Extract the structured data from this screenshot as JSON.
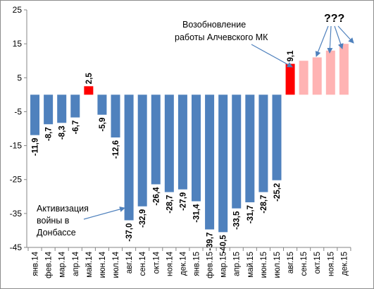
{
  "chart_data": {
    "type": "bar",
    "categories": [
      "янв.14",
      "фев.14",
      "мар.14",
      "апр.14",
      "май.14",
      "июн.14",
      "июл.14",
      "авг.14",
      "сен.14",
      "окт.14",
      "ноя.14",
      "дек.14",
      "янв.15",
      "фев.15",
      "мар.15",
      "апр.15",
      "май.15",
      "июн.15",
      "июл.15",
      "авг.15",
      "сен.15",
      "окт.15",
      "ноя.15",
      "дек.15"
    ],
    "values": [
      -11.9,
      -8.7,
      -8.3,
      -6.7,
      2.5,
      -5.9,
      -12.6,
      -37.0,
      -32.9,
      -26.4,
      -28.7,
      -27.9,
      -31.4,
      -39.7,
      -40.5,
      -33.5,
      -31.7,
      -28.7,
      -25.2,
      9.1,
      10,
      11,
      13,
      15
    ],
    "value_labels": [
      "-11,9",
      "-8,7",
      "-8,3",
      "-6,7",
      "2,5",
      "-5,9",
      "-12,6",
      "-37,0",
      "-32,9",
      "-26,4",
      "-28,7",
      "-27,9",
      "-31,4",
      "-39,7",
      "-40,5",
      "-33,5",
      "-31,7",
      "-28,7",
      "-25,2",
      "9,1",
      "",
      "",
      "",
      ""
    ],
    "bar_kind": [
      "actual",
      "actual",
      "actual",
      "actual",
      "positive",
      "actual",
      "actual",
      "actual",
      "actual",
      "actual",
      "actual",
      "actual",
      "actual",
      "actual",
      "actual",
      "actual",
      "actual",
      "actual",
      "actual",
      "positive",
      "forecast",
      "forecast",
      "forecast",
      "forecast"
    ],
    "ylim": [
      -45,
      25
    ],
    "yticks": [
      25,
      15,
      5,
      -5,
      -15,
      -25,
      -35,
      -45
    ],
    "ytick_labels": [
      "25",
      "15",
      "5",
      "-5",
      "-15",
      "-25",
      "-35",
      "-45"
    ],
    "grid": false,
    "colors": {
      "actual": "#4f81bd",
      "positive": "#ff0000",
      "forecast": "#ffb3b3",
      "arrow": "#4f81bd"
    }
  },
  "annotations": {
    "war_lines": [
      "Активизация",
      "войны в",
      "Донбассе"
    ],
    "restart_lines": [
      "Возобновление",
      "работы Алчевского МК"
    ],
    "forecast_mark": "???"
  }
}
